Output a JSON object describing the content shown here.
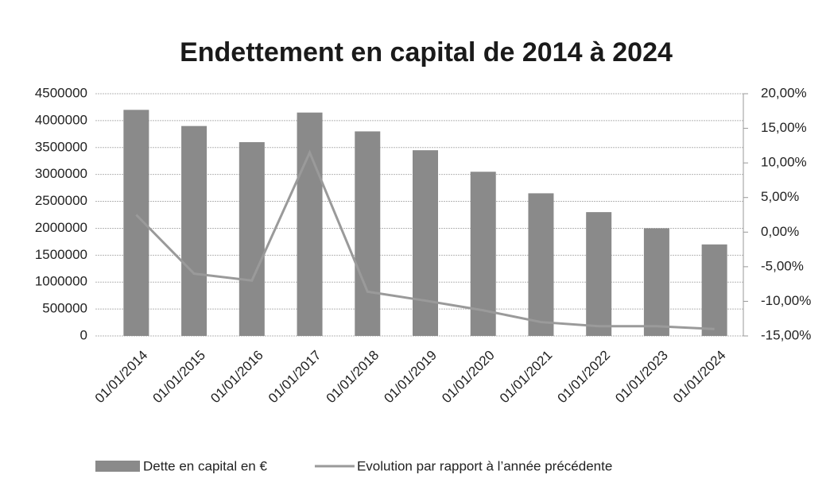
{
  "chart_data": {
    "type": "bar",
    "title": "Endettement en capital de 2014 à 2024",
    "categories": [
      "01/01/2014",
      "01/01/2015",
      "01/01/2016",
      "01/01/2017",
      "01/01/2018",
      "01/01/2019",
      "01/01/2020",
      "01/01/2021",
      "01/01/2022",
      "01/01/2023",
      "01/01/2024"
    ],
    "series": [
      {
        "name": "Dette en capital en €",
        "type": "bar",
        "color": "#8a8a8a",
        "values": [
          4200000,
          3900000,
          3600000,
          4150000,
          3800000,
          3450000,
          3050000,
          2650000,
          2300000,
          2000000,
          1700000
        ]
      },
      {
        "name": "Evolution par rapport à l’année précédente",
        "type": "line",
        "axis": "y2",
        "color": "#9a9a9a",
        "values": [
          2.5,
          -6,
          -7,
          11.5,
          -8.6,
          -9.9,
          -11.3,
          -13,
          -13.6,
          -13.6,
          -14
        ]
      }
    ],
    "ylim": [
      0,
      4500000
    ],
    "yticks": [
      0,
      500000,
      1000000,
      1500000,
      2000000,
      2500000,
      3000000,
      3500000,
      4000000,
      4500000
    ],
    "y2lim": [
      -15,
      20
    ],
    "y2ticks": [
      {
        "value": -15,
        "label": "-15,00%"
      },
      {
        "value": -10,
        "label": "-10,00%"
      },
      {
        "value": -5,
        "label": "-5,00%"
      },
      {
        "value": 0,
        "label": "0,00%"
      },
      {
        "value": 5,
        "label": "5,00%"
      },
      {
        "value": 10,
        "label": "10,00%"
      },
      {
        "value": 15,
        "label": "15,00%"
      },
      {
        "value": 20,
        "label": "20,00%"
      }
    ],
    "grid": true,
    "legend": "bottom"
  }
}
